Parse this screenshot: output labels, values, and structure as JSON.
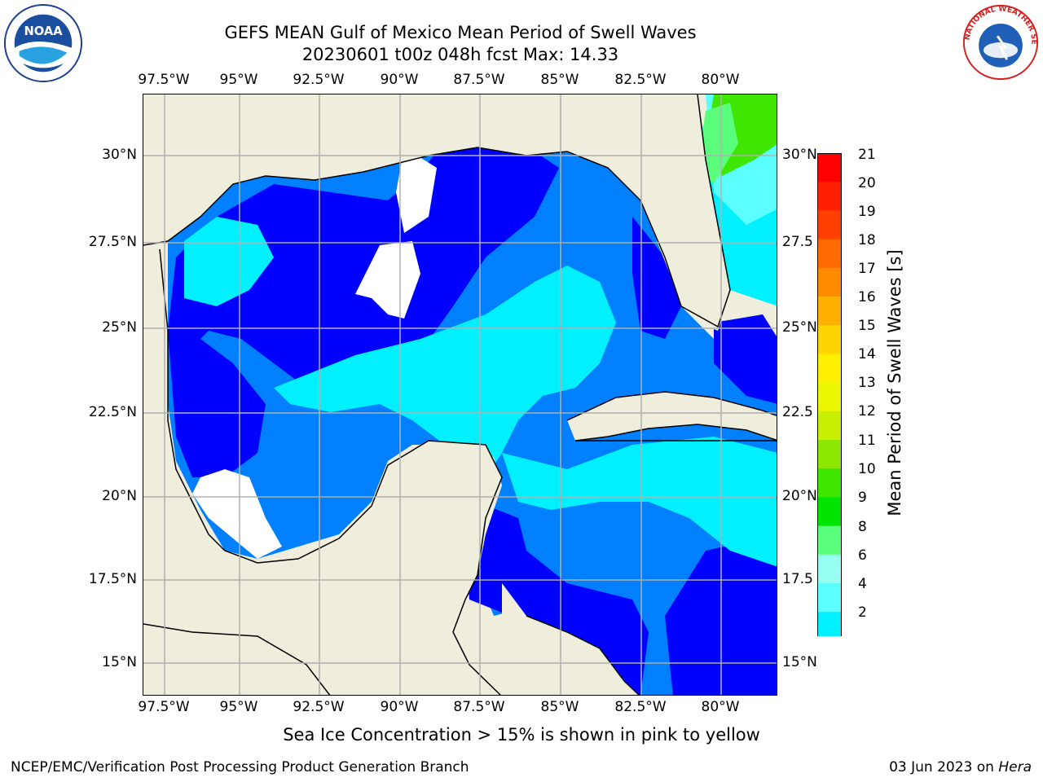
{
  "title": {
    "line1": "GEFS MEAN Gulf of Mexico Mean Period of Swell Waves",
    "line2": "20230601 t00z 048h fcst   Max: 14.33"
  },
  "map": {
    "lon_labels": [
      "97.5°W",
      "95°W",
      "92.5°W",
      "90°W",
      "87.5°W",
      "85°W",
      "82.5°W",
      "80°W"
    ],
    "lat_labels": [
      "30°N",
      "27.5°N",
      "25°N",
      "22.5°N",
      "20°N",
      "17.5°N",
      "15°N"
    ],
    "lat_labels_right": [
      "30°N",
      "27.5",
      "25°N",
      "22.5",
      "20°N",
      "17.5",
      "15°N"
    ],
    "colors": {
      "land": "#efeddc",
      "coast": "#000000",
      "grid": "#b0b0b0",
      "nodata": "#ffffff"
    }
  },
  "colorbar": {
    "title": "Mean Period of Swell Waves [s]",
    "labels": [
      "21",
      "20",
      "19",
      "18",
      "17",
      "16",
      "15",
      "14",
      "13",
      "12",
      "11",
      "10",
      "9",
      "8",
      "6",
      "4",
      "2"
    ],
    "colors": [
      "#ff0000",
      "#ff2000",
      "#ff4000",
      "#ff6a00",
      "#ff8c00",
      "#ffb000",
      "#ffd400",
      "#fff000",
      "#eaf700",
      "#c8f000",
      "#8ce600",
      "#3ee600",
      "#00e400",
      "#5aff7c",
      "#96fff2",
      "#5cffff",
      "#00f0ff",
      "#0080ff",
      "#0000ff"
    ],
    "extend_arrow_color": "#0000ff"
  },
  "bottom_note": "Sea Ice Concentration > 15% is shown in pink to yellow",
  "footer": {
    "left": "NCEP/EMC/Verification Post Processing Product Generation Branch",
    "right_date": "03 Jun 2023 on",
    "right_host": "Hera"
  },
  "logos": {
    "left": "NOAA",
    "right": "NATIONAL WEATHER SERVICE"
  }
}
